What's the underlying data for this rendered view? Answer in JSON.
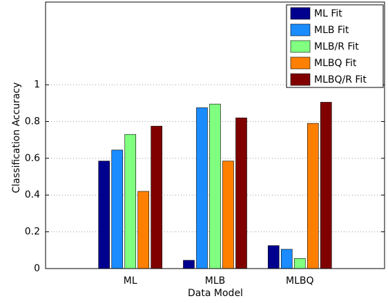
{
  "chart_data": {
    "type": "bar",
    "xlabel": "Data Model",
    "ylabel": "Classification Accuracy",
    "categories": [
      "ML",
      "MLB",
      "MLBQ"
    ],
    "series": [
      {
        "name": "ML Fit",
        "color": "#00008f",
        "values": [
          0.585,
          0.045,
          0.125
        ]
      },
      {
        "name": "MLB Fit",
        "color": "#1a8cff",
        "values": [
          0.645,
          0.875,
          0.105
        ]
      },
      {
        "name": "MLB/R Fit",
        "color": "#80ff80",
        "values": [
          0.73,
          0.895,
          0.055
        ]
      },
      {
        "name": "MLBQ Fit",
        "color": "#ff8000",
        "values": [
          0.42,
          0.585,
          0.79
        ]
      },
      {
        "name": "MLBQ/R Fit",
        "color": "#800000",
        "values": [
          0.775,
          0.82,
          0.905
        ]
      }
    ],
    "ylim": [
      0,
      1.45
    ],
    "yticks": [
      0,
      0.2,
      0.4,
      0.6,
      0.8,
      1
    ],
    "grid": true,
    "legend": "upper right"
  }
}
